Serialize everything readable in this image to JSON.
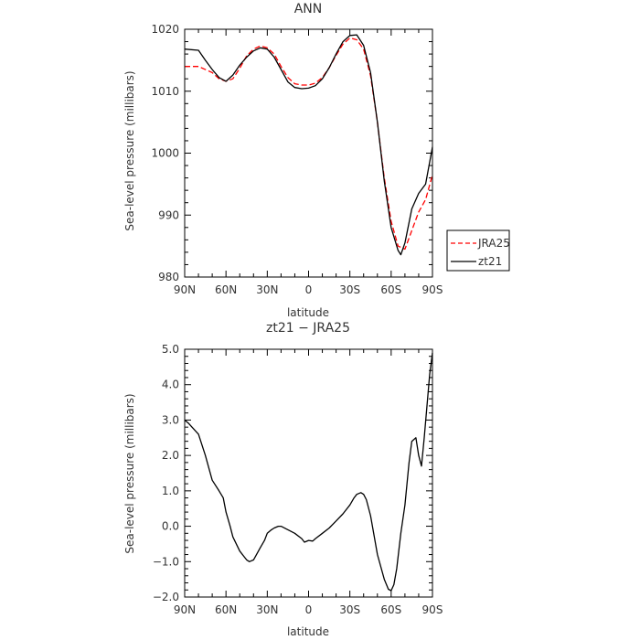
{
  "chart_data": [
    {
      "type": "line",
      "title": "ANN",
      "xlabel": "latitude",
      "ylabel": "Sea-level pressure (millibars)",
      "ylim": [
        980,
        1020
      ],
      "y_ticks": [
        980,
        990,
        1000,
        1010,
        1020
      ],
      "y_tick_labels": [
        "980",
        "990",
        "1000",
        "1010",
        "1020"
      ],
      "x_ticks": [
        90,
        60,
        30,
        0,
        -30,
        -60,
        -90
      ],
      "x_tick_labels": [
        "90N",
        "60N",
        "30N",
        "0",
        "30S",
        "60S",
        "90S"
      ],
      "legend": {
        "placement": "right"
      },
      "series": [
        {
          "name": "JRA25",
          "color": "#ff0000",
          "dash": "dashed",
          "x": [
            90,
            80,
            70,
            65,
            60,
            55,
            50,
            45,
            40,
            35,
            30,
            25,
            20,
            15,
            10,
            5,
            0,
            -5,
            -10,
            -15,
            -20,
            -25,
            -30,
            -35,
            -40,
            -45,
            -50,
            -55,
            -60,
            -65,
            -70,
            -75,
            -80,
            -85,
            -90
          ],
          "y": [
            1014,
            1014,
            1013,
            1012,
            1011.6,
            1012,
            1013.7,
            1015.7,
            1016.8,
            1017.3,
            1017,
            1016,
            1014,
            1012.2,
            1011.2,
            1011,
            1011,
            1011.3,
            1012.2,
            1013.8,
            1015.8,
            1017.6,
            1018.6,
            1018.3,
            1016.8,
            1012.5,
            1005,
            996,
            989,
            985,
            984.5,
            987.5,
            990.5,
            992.5,
            996.5
          ]
        },
        {
          "name": "zt21",
          "color": "#000000",
          "dash": "solid",
          "x": [
            90,
            80,
            75,
            70,
            65,
            60,
            55,
            50,
            45,
            40,
            35,
            30,
            25,
            20,
            15,
            10,
            5,
            0,
            -5,
            -10,
            -15,
            -20,
            -25,
            -30,
            -35,
            -40,
            -45,
            -50,
            -55,
            -60,
            -65,
            -67,
            -70,
            -75,
            -80,
            -85,
            -90
          ],
          "y": [
            1016.8,
            1016.6,
            1015,
            1013.5,
            1012.2,
            1011.6,
            1012.6,
            1014.2,
            1015.5,
            1016.5,
            1017,
            1016.8,
            1015.5,
            1013.5,
            1011.5,
            1010.6,
            1010.4,
            1010.5,
            1010.9,
            1012,
            1013.8,
            1016,
            1018,
            1019,
            1019.1,
            1017.4,
            1013,
            1005,
            995.5,
            988,
            984.3,
            983.6,
            985.5,
            991,
            993.5,
            995,
            1001
          ]
        }
      ]
    },
    {
      "type": "line",
      "title": "zt21 − JRA25",
      "xlabel": "latitude",
      "ylabel": "Sea-level pressure (millibars)",
      "ylim": [
        -2.0,
        5.0
      ],
      "y_ticks": [
        -2,
        -1,
        0,
        1,
        2,
        3,
        4,
        5
      ],
      "y_tick_labels": [
        "−2.0",
        "−1.0",
        "0.0",
        "1.0",
        "2.0",
        "3.0",
        "4.0",
        "5.0"
      ],
      "x_ticks": [
        90,
        60,
        30,
        0,
        -30,
        -60,
        -90
      ],
      "x_tick_labels": [
        "90N",
        "60N",
        "30N",
        "0",
        "30S",
        "60S",
        "90S"
      ],
      "series": [
        {
          "color": "#000000",
          "dash": "solid",
          "x": [
            90,
            87,
            80,
            75,
            70,
            65,
            62,
            60,
            57,
            55,
            50,
            47,
            45,
            43,
            40,
            35,
            32,
            30,
            27,
            25,
            22,
            20,
            15,
            10,
            5,
            3,
            0,
            -3,
            -5,
            -10,
            -15,
            -20,
            -25,
            -30,
            -33,
            -35,
            -38,
            -40,
            -42,
            -45,
            -50,
            -55,
            -58,
            -60,
            -62,
            -64,
            -67,
            -70,
            -73,
            -75,
            -78,
            -80,
            -82,
            -84,
            -86,
            -88,
            -90
          ],
          "y": [
            3.0,
            2.9,
            2.6,
            2.0,
            1.3,
            1.0,
            0.8,
            0.4,
            0.0,
            -0.3,
            -0.7,
            -0.85,
            -0.95,
            -1.0,
            -0.95,
            -0.6,
            -0.4,
            -0.2,
            -0.1,
            -0.05,
            0.0,
            0.0,
            -0.1,
            -0.2,
            -0.35,
            -0.45,
            -0.4,
            -0.42,
            -0.35,
            -0.2,
            -0.05,
            0.15,
            0.35,
            0.6,
            0.8,
            0.9,
            0.95,
            0.9,
            0.75,
            0.3,
            -0.8,
            -1.5,
            -1.78,
            -1.82,
            -1.65,
            -1.2,
            -0.2,
            0.6,
            1.8,
            2.4,
            2.5,
            2.0,
            1.7,
            2.5,
            3.4,
            4.3,
            4.9
          ]
        }
      ]
    }
  ]
}
